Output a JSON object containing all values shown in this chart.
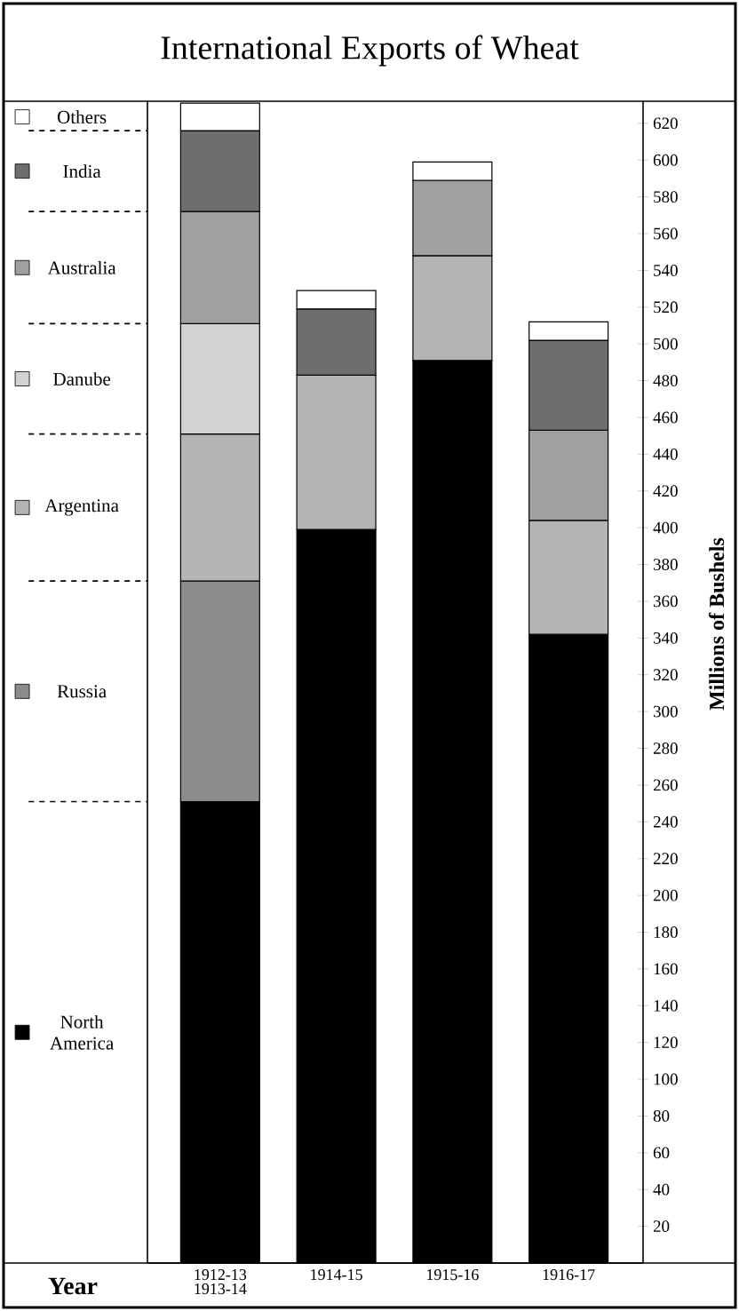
{
  "chart_data": {
    "type": "bar",
    "title": "International Exports of Wheat",
    "xlabel": "Year",
    "ylabel": "Millions of Bushels",
    "categories": [
      "1912-13 1913-14",
      "1914-15",
      "1915-16",
      "1916-17"
    ],
    "stacked": true,
    "legend": "left",
    "ylim": [
      0,
      632
    ],
    "yticks": [
      20,
      40,
      60,
      80,
      100,
      120,
      140,
      160,
      180,
      200,
      220,
      240,
      260,
      280,
      300,
      320,
      340,
      360,
      380,
      400,
      420,
      440,
      460,
      480,
      500,
      520,
      540,
      560,
      580,
      600,
      620
    ],
    "series": [
      {
        "name": "North America",
        "color": "#000000",
        "values": [
          251,
          399,
          491,
          342
        ]
      },
      {
        "name": "Russia",
        "color": "#8c8c8c",
        "values": [
          120,
          null,
          null,
          null
        ]
      },
      {
        "name": "Argentina",
        "color": "#b4b4b4",
        "values": [
          80,
          84,
          57,
          62
        ]
      },
      {
        "name": "Danube",
        "color": "#d2d2d2",
        "values": [
          60,
          null,
          null,
          null
        ]
      },
      {
        "name": "Australia",
        "color": "#a0a0a0",
        "values": [
          61,
          null,
          41,
          49
        ]
      },
      {
        "name": "India",
        "color": "#6e6e6e",
        "values": [
          44,
          36,
          null,
          49
        ]
      },
      {
        "name": "Others",
        "color": "#ffffff",
        "values": [
          15,
          10,
          10,
          10
        ]
      }
    ]
  }
}
